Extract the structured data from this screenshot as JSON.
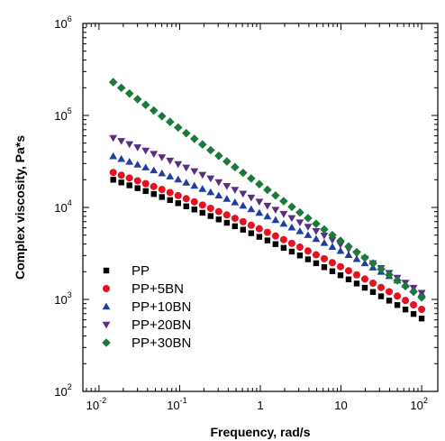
{
  "chart_data": {
    "type": "scatter",
    "xlabel": "Frequency, rad/s",
    "ylabel": "Complex viscosity, Pa*s",
    "xscale": "log",
    "yscale": "log",
    "xlim": [
      0.00631,
      158.5
    ],
    "ylim": [
      100,
      1000000
    ],
    "grid": false,
    "legend_position": "bottom-left",
    "x_ticks": [
      {
        "base": "10",
        "exp": "-2",
        "value": 0.01
      },
      {
        "base": "10",
        "exp": "-1",
        "value": 0.1
      },
      {
        "base": "1",
        "exp": "",
        "value": 1
      },
      {
        "base": "10",
        "exp": "",
        "value": 10
      },
      {
        "base": "10",
        "exp": "2",
        "value": 100
      }
    ],
    "y_ticks": [
      {
        "base": "10",
        "exp": "2",
        "value": 100
      },
      {
        "base": "10",
        "exp": "3",
        "value": 1000
      },
      {
        "base": "10",
        "exp": "4",
        "value": 10000
      },
      {
        "base": "10",
        "exp": "5",
        "value": 100000
      },
      {
        "base": "10",
        "exp": "6",
        "value": 1000000
      }
    ],
    "series": [
      {
        "name": "PP",
        "marker": "square",
        "color": "#000000",
        "y_at_xmin": 20000,
        "y_at_xmax": 620
      },
      {
        "name": "PP+5BN",
        "marker": "circle",
        "color": "#e8101e",
        "y_at_xmin": 24000,
        "y_at_xmax": 780
      },
      {
        "name": "PP+10BN",
        "marker": "triangle-up",
        "color": "#1f3fa0",
        "y_at_xmin": 36000,
        "y_at_xmax": 1150
      },
      {
        "name": "PP+20BN",
        "marker": "triangle-down",
        "color": "#5a2d82",
        "y_at_xmin": 57000,
        "y_at_xmax": 1180
      },
      {
        "name": "PP+30BN",
        "marker": "diamond",
        "color": "#1a7a3c",
        "y_at_xmin": 230000,
        "y_at_xmax": 1050
      }
    ],
    "x_range_points": {
      "start": 0.015,
      "end": 100,
      "points_per_decade": 10
    }
  }
}
